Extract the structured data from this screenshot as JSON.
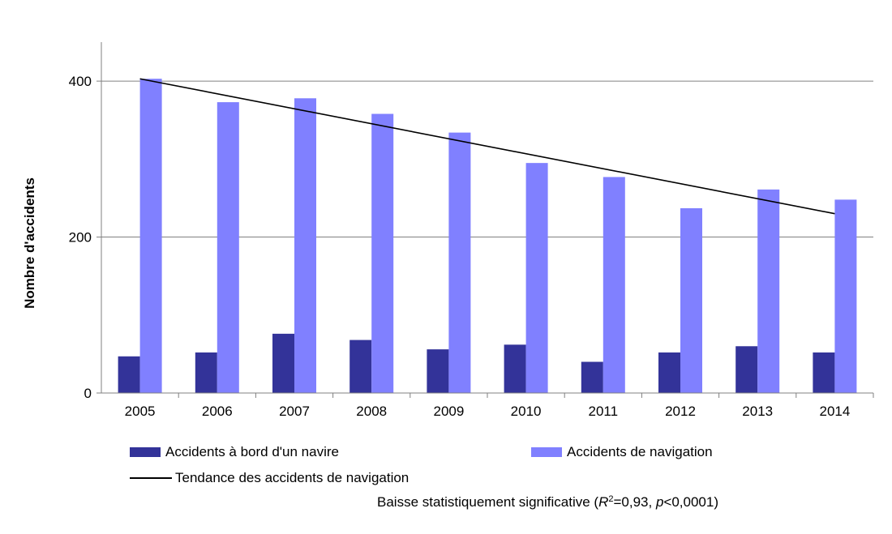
{
  "chart_data": {
    "type": "bar",
    "categories": [
      "2005",
      "2006",
      "2007",
      "2008",
      "2009",
      "2010",
      "2011",
      "2012",
      "2013",
      "2014"
    ],
    "series": [
      {
        "name": "Accidents à bord d'un navire",
        "color": "#333399",
        "values": [
          47,
          52,
          76,
          68,
          56,
          62,
          40,
          52,
          60,
          52
        ]
      },
      {
        "name": "Accidents de navigation",
        "color": "#8080ff",
        "values": [
          403,
          373,
          378,
          358,
          334,
          295,
          277,
          237,
          261,
          248
        ]
      }
    ],
    "trendline": {
      "name": "Tendance des accidents de navigation",
      "color": "#000000",
      "start": {
        "x": "2005",
        "y": 403
      },
      "end": {
        "x": "2014",
        "y": 230
      }
    },
    "ylabel": "Nombre d'accidents",
    "ylim": [
      0,
      450
    ],
    "yticks": [
      0,
      200,
      400
    ],
    "grid": true,
    "legend_placement": "bottom"
  },
  "note": {
    "prefix": "Baisse statistiquement significative (",
    "r_symbol": "R",
    "r_exp": "2",
    "r_value": "=0,93, ",
    "p_symbol": "p",
    "p_value": "<0,0001)"
  }
}
